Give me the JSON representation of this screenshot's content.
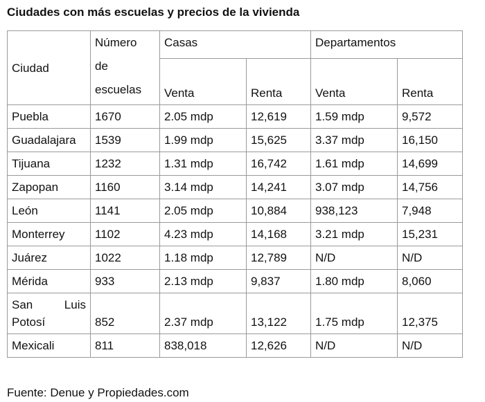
{
  "title": "Ciudades con más escuelas y precios de la vivienda",
  "table": {
    "header": [
      "Ciudad",
      "Número de escuelas",
      "Casas",
      "Departamentos"
    ],
    "subheader": [
      "Venta",
      "Renta",
      "Venta",
      "Renta"
    ],
    "rows": [
      [
        "Puebla",
        "1670",
        "2.05 mdp",
        "12,619",
        "1.59 mdp",
        "9,572"
      ],
      [
        "Guadalajara",
        "1539",
        "1.99 mdp",
        "15,625",
        "3.37 mdp",
        "16,150"
      ],
      [
        "Tijuana",
        "1232",
        "1.31 mdp",
        "16,742",
        "1.61 mdp",
        "14,699"
      ],
      [
        "Zapopan",
        "1160",
        "3.14 mdp",
        "14,241",
        "3.07 mdp",
        "14,756"
      ],
      [
        "León",
        "1141",
        "2.05 mdp",
        "10,884",
        "938,123",
        "7,948"
      ],
      [
        "Monterrey",
        "1102",
        "4.23 mdp",
        "14,168",
        "3.21 mdp",
        "15,231"
      ],
      [
        "Juárez",
        "1022",
        "1.18 mdp",
        "12,789",
        "N/D",
        "N/D"
      ],
      [
        "Mérida",
        "933",
        "2.13 mdp",
        "9,837",
        "1.80 mdp",
        "8,060"
      ],
      [
        "San Luis Potosí",
        "852",
        "2.37 mdp",
        "13,122",
        "1.75 mdp",
        "12,375"
      ],
      [
        "Mexicali",
        "811",
        "838,018",
        "12,626",
        "N/D",
        "N/D"
      ]
    ]
  },
  "source": "Fuente: Denue y Propiedades.com"
}
